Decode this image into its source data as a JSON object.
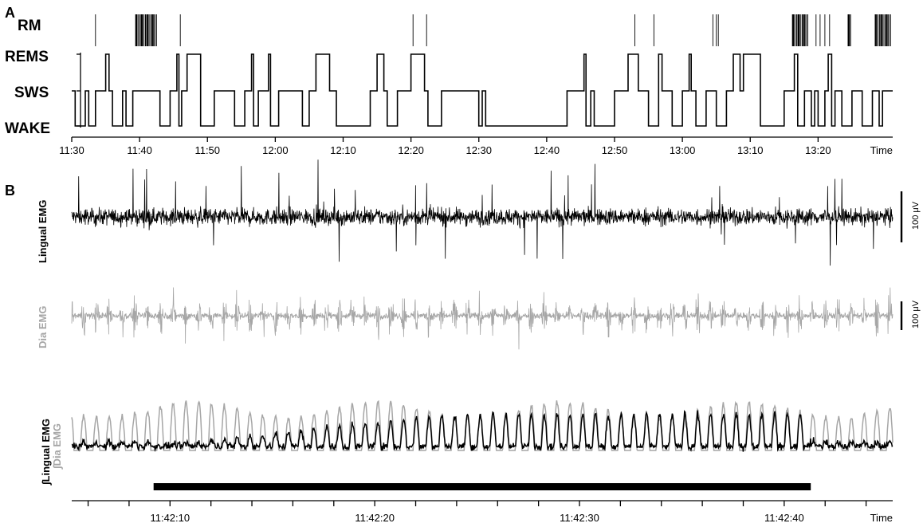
{
  "chart_data": [
    {
      "panel": "A",
      "type": "line",
      "title": "",
      "states": [
        "WAKE",
        "SWS",
        "REMS"
      ],
      "rm_label": "RM",
      "x_ticks": [
        "11:30",
        "11:40",
        "11:50",
        "12:00",
        "12:10",
        "12:20",
        "12:30",
        "12:40",
        "12:50",
        "13:00",
        "13:10",
        "13:20"
      ],
      "xlabel": "Time",
      "xlim": [
        "11:30",
        "13:31"
      ],
      "hypnogram": [
        [
          "11:30.0",
          "SWS"
        ],
        [
          "11:30.5",
          "WAKE"
        ],
        [
          "11:32.0",
          "SWS"
        ],
        [
          "11:32.5",
          "WAKE"
        ],
        [
          "11:33.5",
          "SWS"
        ],
        [
          "11:35.0",
          "REMS"
        ],
        [
          "11:35.5",
          "SWS"
        ],
        [
          "11:36.0",
          "WAKE"
        ],
        [
          "11:37.5",
          "SWS"
        ],
        [
          "11:38.0",
          "WAKE"
        ],
        [
          "11:39.0",
          "SWS"
        ],
        [
          "11:43.0",
          "WAKE"
        ],
        [
          "11:44.5",
          "SWS"
        ],
        [
          "11:45.5",
          "REMS"
        ],
        [
          "11:45.8",
          "WAKE"
        ],
        [
          "11:46.2",
          "SWS"
        ],
        [
          "11:47.0",
          "REMS"
        ],
        [
          "11:49.0",
          "WAKE"
        ],
        [
          "11:51.0",
          "SWS"
        ],
        [
          "11:54.0",
          "WAKE"
        ],
        [
          "11:55.5",
          "SWS"
        ],
        [
          "11:56.5",
          "REMS"
        ],
        [
          "11:56.8",
          "WAKE"
        ],
        [
          "11:57.5",
          "SWS"
        ],
        [
          "11:59.0",
          "REMS"
        ],
        [
          "11:59.3",
          "WAKE"
        ],
        [
          "12:00.5",
          "SWS"
        ],
        [
          "12:04.0",
          "WAKE"
        ],
        [
          "12:05.0",
          "SWS"
        ],
        [
          "12:06.0",
          "REMS"
        ],
        [
          "12:08.0",
          "SWS"
        ],
        [
          "12:09.0",
          "WAKE"
        ],
        [
          "12:14.0",
          "SWS"
        ],
        [
          "12:15.0",
          "REMS"
        ],
        [
          "12:16.0",
          "SWS"
        ],
        [
          "12:16.5",
          "WAKE"
        ],
        [
          "12:18.0",
          "SWS"
        ],
        [
          "12:20.0",
          "REMS"
        ],
        [
          "12:22.0",
          "SWS"
        ],
        [
          "12:22.5",
          "WAKE"
        ],
        [
          "12:24.5",
          "SWS"
        ],
        [
          "12:30.0",
          "WAKE"
        ],
        [
          "12:30.5",
          "SWS"
        ],
        [
          "12:31.0",
          "WAKE"
        ],
        [
          "12:43.0",
          "SWS"
        ],
        [
          "12:45.5",
          "REMS"
        ],
        [
          "12:45.8",
          "WAKE"
        ],
        [
          "12:46.5",
          "SWS"
        ],
        [
          "12:47.0",
          "WAKE"
        ],
        [
          "12:50.0",
          "SWS"
        ],
        [
          "12:52.0",
          "REMS"
        ],
        [
          "12:53.5",
          "SWS"
        ],
        [
          "12:55.0",
          "WAKE"
        ],
        [
          "12:56.5",
          "REMS"
        ],
        [
          "12:57.0",
          "SWS"
        ],
        [
          "12:58.5",
          "WAKE"
        ],
        [
          "13:00.0",
          "SWS"
        ],
        [
          "13:01.0",
          "REMS"
        ],
        [
          "13:01.3",
          "SWS"
        ],
        [
          "13:02.0",
          "WAKE"
        ],
        [
          "13:03.5",
          "SWS"
        ],
        [
          "13:05.0",
          "WAKE"
        ],
        [
          "13:06.5",
          "SWS"
        ],
        [
          "13:07.5",
          "REMS"
        ],
        [
          "13:08.5",
          "SWS"
        ],
        [
          "13:09.0",
          "REMS"
        ],
        [
          "13:11.5",
          "WAKE"
        ],
        [
          "13:15.0",
          "SWS"
        ],
        [
          "13:16.5",
          "REMS"
        ],
        [
          "13:17.0",
          "WAKE"
        ],
        [
          "13:18.0",
          "SWS"
        ],
        [
          "13:19.0",
          "WAKE"
        ],
        [
          "13:19.5",
          "SWS"
        ],
        [
          "13:20.0",
          "WAKE"
        ],
        [
          "13:21.0",
          "SWS"
        ],
        [
          "13:21.5",
          "REMS"
        ],
        [
          "13:22.0",
          "WAKE"
        ],
        [
          "13:22.5",
          "SWS"
        ],
        [
          "13:23.5",
          "WAKE"
        ],
        [
          "13:25.0",
          "SWS"
        ],
        [
          "13:26.5",
          "WAKE"
        ],
        [
          "13:28.0",
          "SWS"
        ],
        [
          "13:29.0",
          "WAKE"
        ],
        [
          "13:29.5",
          "SWS"
        ],
        [
          "13:31.0",
          "SWS"
        ]
      ],
      "rm_events_thin": [
        "11:33.5",
        "11:46.0",
        "12:20.3",
        "12:22.3",
        "12:53.0",
        "12:55.8",
        "13:04.5",
        "13:05.0",
        "13:05.3",
        "13:19.7",
        "13:20.3",
        "13:21.0",
        "13:21.7"
      ],
      "rm_events_bursts": [
        [
          "11:39.5",
          "11:42.5"
        ],
        [
          "13:16.3",
          "13:18.5"
        ],
        [
          "13:24.5",
          "13:25.0"
        ],
        [
          "13:28.5",
          "13:30.8"
        ]
      ]
    },
    {
      "panel": "B",
      "type": "line",
      "title": "",
      "series": [
        {
          "name": "Lingual EMG",
          "kind": "raw",
          "color": "#000000",
          "scale_bar": "100 μV"
        },
        {
          "name": "Dia EMG",
          "kind": "raw",
          "color": "#a6a6a6",
          "scale_bar": "100 μV"
        },
        {
          "name": "∫Lingual EMG",
          "kind": "integrated",
          "color": "#000000"
        },
        {
          "name": "∫Dia EMG",
          "kind": "integrated",
          "color": "#a6a6a6"
        }
      ],
      "x_ticks": [
        "11:42:10",
        "11:42:20",
        "11:42:30",
        "11:42:40"
      ],
      "xlabel": "Time",
      "xlim_seconds": [
        5.2,
        45.3
      ],
      "breathing_rate_per_s": 1.6,
      "rm_bar_seconds": [
        9.2,
        41.3
      ]
    }
  ],
  "labels": {
    "panel_a": "A",
    "panel_b": "B",
    "rm": "RM",
    "rems": "REMS",
    "sws": "SWS",
    "wake": "WAKE",
    "time": "Time",
    "lingual": "Lingual EMG",
    "dia": "Dia EMG",
    "int_lingual": "∫Lingual EMG",
    "int_dia": "∫Dia EMG",
    "scale_1": "100 μV",
    "scale_2": "100 μV"
  },
  "colors": {
    "black": "#000000",
    "gray": "#a6a6a6"
  }
}
